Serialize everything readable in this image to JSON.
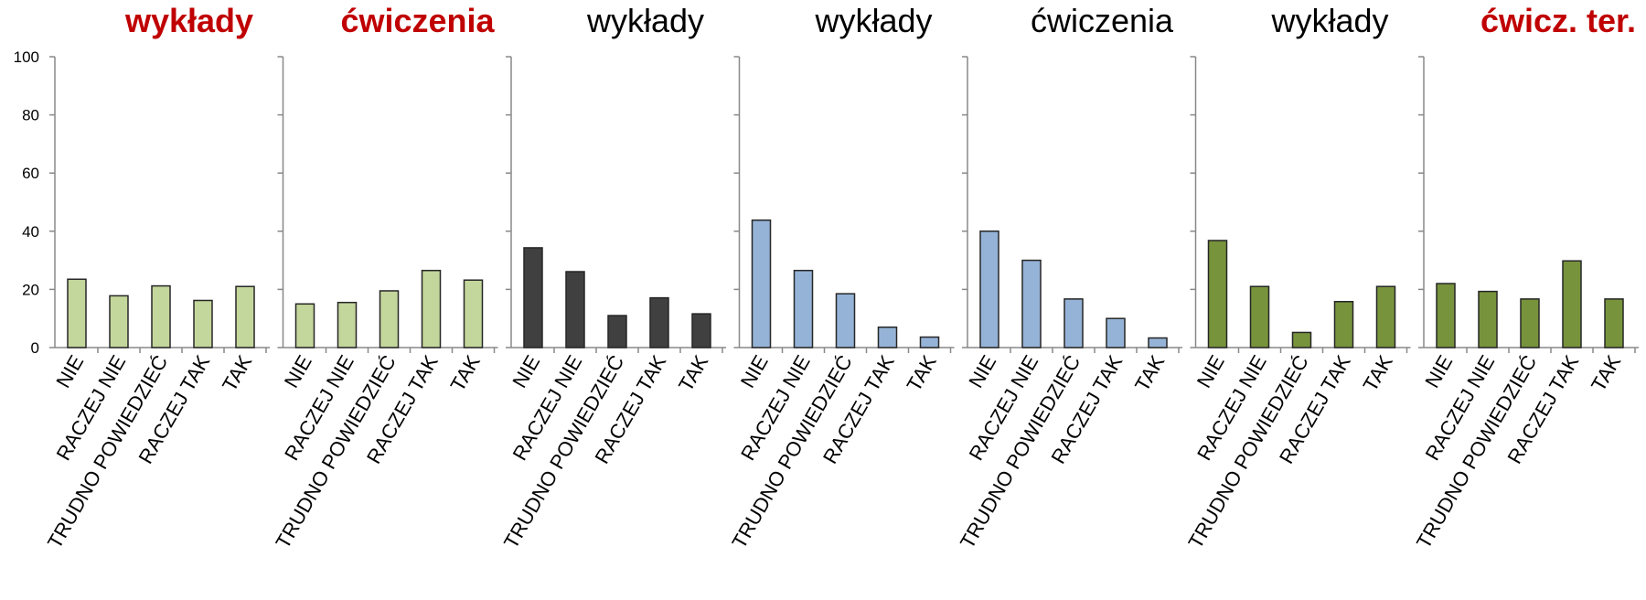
{
  "chart_data": {
    "type": "bar",
    "ylim": [
      0,
      100
    ],
    "yticks": [
      "0",
      "20",
      "40",
      "60",
      "80",
      "100"
    ],
    "categories": [
      "NIE",
      "RACZEJ NIE",
      "TRUDNO POWIEDZIEĆ",
      "RACZEJ TAK",
      "TAK"
    ],
    "panels": [
      {
        "title": "wykłady",
        "title_color": "#c00000",
        "title_bold": true,
        "bar_color": "#c3d69b",
        "values": [
          23.5,
          17.8,
          21.2,
          16.2,
          21.0
        ]
      },
      {
        "title": "ćwiczenia",
        "title_color": "#c00000",
        "title_bold": true,
        "bar_color": "#c3d69b",
        "values": [
          15.0,
          15.5,
          19.5,
          26.5,
          23.2
        ]
      },
      {
        "title": "wykłady",
        "title_color": "#000000",
        "title_bold": false,
        "bar_color": "#404040",
        "values": [
          34.3,
          26.1,
          11.0,
          17.1,
          11.6
        ]
      },
      {
        "title": "wykłady",
        "title_color": "#000000",
        "title_bold": false,
        "bar_color": "#95b3d7",
        "values": [
          43.8,
          26.5,
          18.5,
          7.0,
          3.6
        ]
      },
      {
        "title": "ćwiczenia",
        "title_color": "#000000",
        "title_bold": false,
        "bar_color": "#95b3d7",
        "values": [
          40.0,
          30.0,
          16.7,
          10.0,
          3.3
        ]
      },
      {
        "title": "wykłady",
        "title_color": "#000000",
        "title_bold": false,
        "bar_color": "#77933c",
        "values": [
          36.8,
          21.0,
          5.2,
          15.8,
          21.0
        ]
      },
      {
        "title": "ćwicz. ter.",
        "title_color": "#c00000",
        "title_bold": true,
        "bar_color": "#77933c",
        "values": [
          22.0,
          19.3,
          16.7,
          29.8,
          16.7
        ]
      }
    ]
  }
}
